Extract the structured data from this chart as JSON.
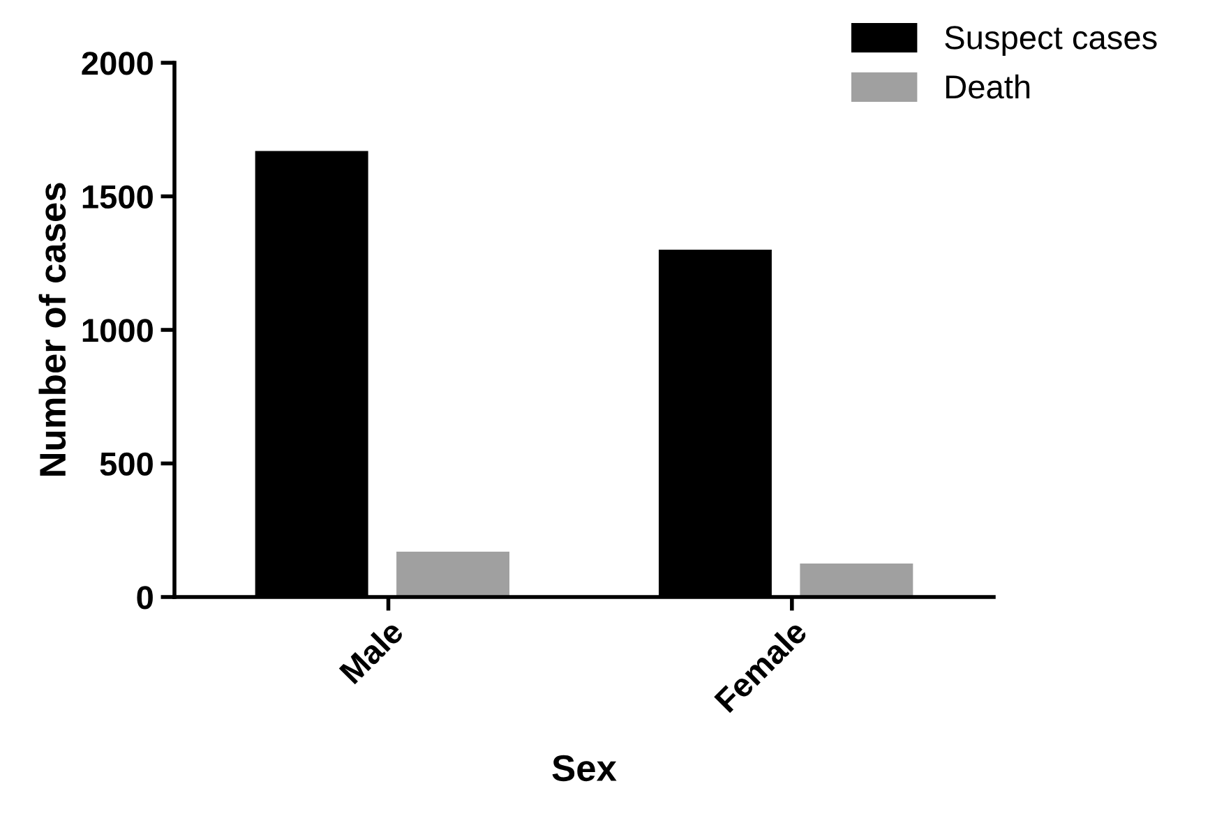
{
  "chart_data": {
    "type": "bar",
    "xlabel": "Sex",
    "ylabel": "Number of cases",
    "categories": [
      "Male",
      "Female"
    ],
    "series": [
      {
        "name": "Suspect cases",
        "color": "#000000",
        "values": [
          1670,
          1300
        ]
      },
      {
        "name": "Death",
        "color": "#a0a0a0",
        "values": [
          170,
          125
        ]
      }
    ],
    "ylim": [
      0,
      2000
    ],
    "yticks": [
      0,
      500,
      1000,
      1500,
      2000
    ],
    "grid": false,
    "legend": "top right"
  }
}
